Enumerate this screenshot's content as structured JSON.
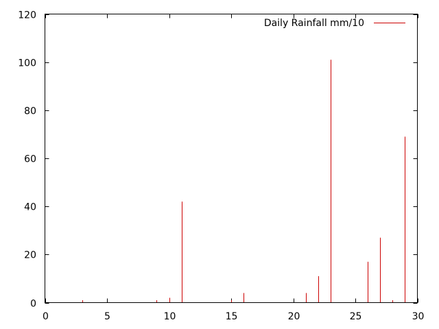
{
  "chart_data": {
    "type": "bar",
    "style": "impulses",
    "series": [
      {
        "name": "Daily Rainfall mm/10",
        "color": "#cc0000",
        "x": [
          3,
          9,
          10,
          11,
          15,
          16,
          21,
          22,
          23,
          26,
          27,
          28,
          29
        ],
        "values": [
          1,
          1,
          2,
          42,
          1,
          4,
          4,
          11,
          101,
          17,
          27,
          1,
          69
        ]
      }
    ],
    "xlim": [
      0,
      30
    ],
    "ylim": [
      0,
      120
    ],
    "xticks": [
      0,
      5,
      10,
      15,
      20,
      25,
      30
    ],
    "yticks": [
      0,
      20,
      40,
      60,
      80,
      100,
      120
    ],
    "xtick_labels": [
      "0",
      "5",
      "10",
      "15",
      "20",
      "25",
      "30"
    ],
    "ytick_labels": [
      "0",
      "20",
      "40",
      "60",
      "80",
      "100",
      "120"
    ],
    "title": "",
    "xlabel": "",
    "ylabel": "",
    "grid": false,
    "legend_position": "top-right"
  }
}
